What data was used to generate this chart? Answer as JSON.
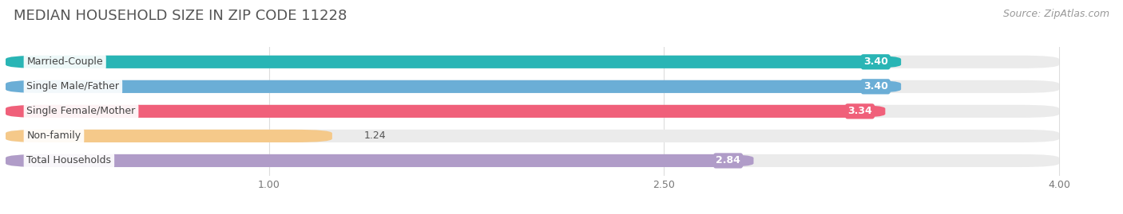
{
  "title": "MEDIAN HOUSEHOLD SIZE IN ZIP CODE 11228",
  "source": "Source: ZipAtlas.com",
  "categories": [
    "Married-Couple",
    "Single Male/Father",
    "Single Female/Mother",
    "Non-family",
    "Total Households"
  ],
  "values": [
    3.4,
    3.4,
    3.34,
    1.24,
    2.84
  ],
  "bar_colors": [
    "#29b5b5",
    "#6baed6",
    "#f0607a",
    "#f5c98a",
    "#b09cc8"
  ],
  "label_bg_colors": [
    "#29b5b5",
    "#6baed6",
    "#f0607a",
    "#f5c98a",
    "#b09cc8"
  ],
  "xlim": [
    0,
    4.2
  ],
  "xmin": 0,
  "xticks": [
    1.0,
    2.5,
    4.0
  ],
  "value_labels": [
    "3.40",
    "3.40",
    "3.34",
    "1.24",
    "2.84"
  ],
  "background_color": "#ffffff",
  "bar_bg_color": "#ebebeb",
  "title_fontsize": 13,
  "source_fontsize": 9,
  "label_fontsize": 9,
  "value_fontsize": 9
}
